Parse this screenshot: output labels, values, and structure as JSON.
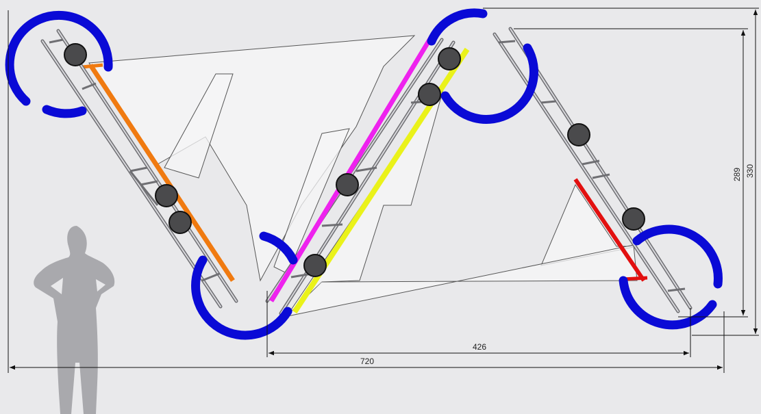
{
  "dimensions": {
    "bottom_total": "720",
    "bottom_inner": "426",
    "right_outer": "330",
    "right_inner": "289"
  }
}
